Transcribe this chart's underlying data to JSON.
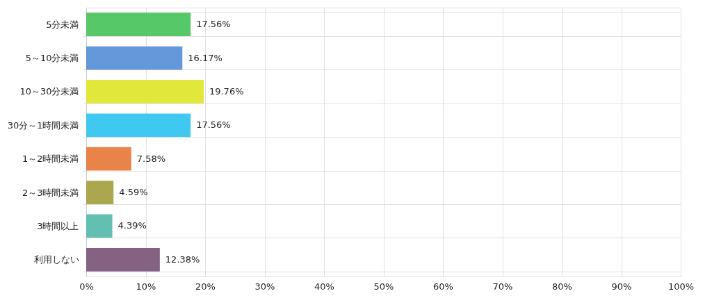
{
  "chart_data": {
    "type": "bar",
    "orientation": "horizontal",
    "categories": [
      "5分未満",
      "5～10分未満",
      "10～30分未満",
      "30分～1時間未満",
      "1～2時間未満",
      "2～3時間未満",
      "3時間以上",
      "利用しない"
    ],
    "values": [
      17.56,
      16.17,
      19.76,
      17.56,
      7.58,
      4.59,
      4.39,
      12.38
    ],
    "colors": [
      "#4dc55f",
      "#5b94d8",
      "#e0e631",
      "#35c6f0",
      "#e87d3e",
      "#a5a245",
      "#5bbcae",
      "#7e5a7a"
    ],
    "value_labels": [
      "17.56%",
      "16.17%",
      "19.76%",
      "17.56%",
      "7.58%",
      "4.59%",
      "4.39%",
      "12.38%"
    ],
    "xlim": [
      0,
      100
    ],
    "xticks": [
      {
        "value": 0,
        "label": "0%"
      },
      {
        "value": 10,
        "label": "10%"
      },
      {
        "value": 20,
        "label": "20%"
      },
      {
        "value": 30,
        "label": "30%"
      },
      {
        "value": 40,
        "label": "40%"
      },
      {
        "value": 50,
        "label": "50%"
      },
      {
        "value": 60,
        "label": "60%"
      },
      {
        "value": 70,
        "label": "70%"
      },
      {
        "value": 80,
        "label": "80%"
      },
      {
        "value": 90,
        "label": "90%"
      },
      {
        "value": 100,
        "label": "100%"
      }
    ],
    "grid": true
  }
}
